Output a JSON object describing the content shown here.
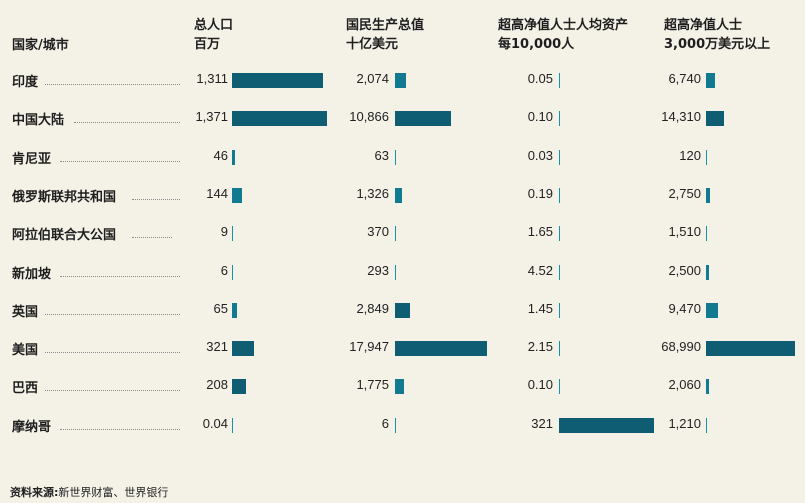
{
  "chart_data": {
    "type": "table",
    "columns": [
      {
        "key": "country",
        "line1": "国家/城市",
        "line2": ""
      },
      {
        "key": "pop",
        "line1": "总人口",
        "line2": "百万"
      },
      {
        "key": "gdp",
        "line1": "国民生产总值",
        "line2": "十亿美元"
      },
      {
        "key": "uhnw_per",
        "line1": "超高净值人士人均资产",
        "line2": "每10,000人"
      },
      {
        "key": "uhnw",
        "line1": "超高净值人士",
        "line2": "3,000万美元以上"
      }
    ],
    "rows": [
      {
        "country": "印度",
        "pop": 1311,
        "pop_label": "1,311",
        "gdp": 2074,
        "gdp_label": "2,074",
        "uhnw_per": 0.05,
        "uhnw_per_label": "0.05",
        "uhnw": 6740,
        "uhnw_label": "6,740"
      },
      {
        "country": "中国大陆",
        "pop": 1371,
        "pop_label": "1,371",
        "gdp": 10866,
        "gdp_label": "10,866",
        "uhnw_per": 0.1,
        "uhnw_per_label": "0.10",
        "uhnw": 14310,
        "uhnw_label": "14,310"
      },
      {
        "country": "肯尼亚",
        "pop": 46,
        "pop_label": "46",
        "gdp": 63,
        "gdp_label": "63",
        "uhnw_per": 0.03,
        "uhnw_per_label": "0.03",
        "uhnw": 120,
        "uhnw_label": "120"
      },
      {
        "country": "俄罗斯联邦共和国",
        "pop": 144,
        "pop_label": "144",
        "gdp": 1326,
        "gdp_label": "1,326",
        "uhnw_per": 0.19,
        "uhnw_per_label": "0.19",
        "uhnw": 2750,
        "uhnw_label": "2,750"
      },
      {
        "country": "阿拉伯联合大公国",
        "pop": 9,
        "pop_label": "9",
        "gdp": 370,
        "gdp_label": "370",
        "uhnw_per": 1.65,
        "uhnw_per_label": "1.65",
        "uhnw": 1510,
        "uhnw_label": "1,510"
      },
      {
        "country": "新加坡",
        "pop": 6,
        "pop_label": "6",
        "gdp": 293,
        "gdp_label": "293",
        "uhnw_per": 4.52,
        "uhnw_per_label": "4.52",
        "uhnw": 2500,
        "uhnw_label": "2,500"
      },
      {
        "country": "英国",
        "pop": 65,
        "pop_label": "65",
        "gdp": 2849,
        "gdp_label": "2,849",
        "uhnw_per": 1.45,
        "uhnw_per_label": "1.45",
        "uhnw": 9470,
        "uhnw_label": "9,470"
      },
      {
        "country": "美国",
        "pop": 321,
        "pop_label": "321",
        "gdp": 17947,
        "gdp_label": "17,947",
        "uhnw_per": 2.15,
        "uhnw_per_label": "2.15",
        "uhnw": 68990,
        "uhnw_label": "68,990"
      },
      {
        "country": "巴西",
        "pop": 208,
        "pop_label": "208",
        "gdp": 1775,
        "gdp_label": "1,775",
        "uhnw_per": 0.1,
        "uhnw_per_label": "0.10",
        "uhnw": 2060,
        "uhnw_label": "2,060"
      },
      {
        "country": "摩纳哥",
        "pop": 0.04,
        "pop_label": "0.04",
        "gdp": 6,
        "gdp_label": "6",
        "uhnw_per": 321,
        "uhnw_per_label": "321",
        "uhnw": 1210,
        "uhnw_label": "1,210"
      }
    ],
    "colors": {
      "dark": "#0e5d72",
      "light": "#1492a8"
    },
    "source_label": "资料来源:",
    "source_text": "新世界财富、世界银行"
  }
}
